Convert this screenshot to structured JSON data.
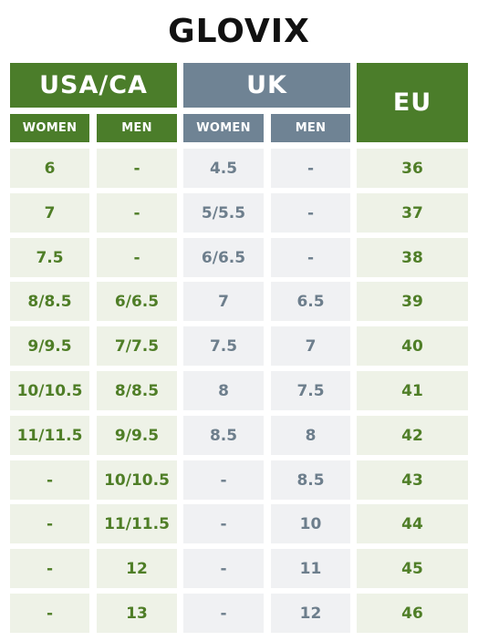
{
  "title": "GLOVIX",
  "headers": {
    "usa_ca": "USA/CA",
    "uk": "UK",
    "eu": "EU",
    "women": "WOMEN",
    "men": "MEN"
  },
  "colors": {
    "green_header": "#4b7d2a",
    "gray_header": "#6f8394",
    "green_text": "#4f7e27",
    "gray_text": "#6d7e8c",
    "green_cell": "#eef2e7",
    "gray_cell": "#f0f1f3"
  },
  "rows": [
    {
      "usa_women": "6",
      "usa_men": "-",
      "uk_women": "4.5",
      "uk_men": "-",
      "eu": "36"
    },
    {
      "usa_women": "7",
      "usa_men": "-",
      "uk_women": "5/5.5",
      "uk_men": "-",
      "eu": "37"
    },
    {
      "usa_women": "7.5",
      "usa_men": "-",
      "uk_women": "6/6.5",
      "uk_men": "-",
      "eu": "38"
    },
    {
      "usa_women": "8/8.5",
      "usa_men": "6/6.5",
      "uk_women": "7",
      "uk_men": "6.5",
      "eu": "39"
    },
    {
      "usa_women": "9/9.5",
      "usa_men": "7/7.5",
      "uk_women": "7.5",
      "uk_men": "7",
      "eu": "40"
    },
    {
      "usa_women": "10/10.5",
      "usa_men": "8/8.5",
      "uk_women": "8",
      "uk_men": "7.5",
      "eu": "41"
    },
    {
      "usa_women": "11/11.5",
      "usa_men": "9/9.5",
      "uk_women": "8.5",
      "uk_men": "8",
      "eu": "42"
    },
    {
      "usa_women": "-",
      "usa_men": "10/10.5",
      "uk_women": "-",
      "uk_men": "8.5",
      "eu": "43"
    },
    {
      "usa_women": "-",
      "usa_men": "11/11.5",
      "uk_women": "-",
      "uk_men": "10",
      "eu": "44"
    },
    {
      "usa_women": "-",
      "usa_men": "12",
      "uk_women": "-",
      "uk_men": "11",
      "eu": "45"
    },
    {
      "usa_women": "-",
      "usa_men": "13",
      "uk_women": "-",
      "uk_men": "12",
      "eu": "46"
    }
  ]
}
